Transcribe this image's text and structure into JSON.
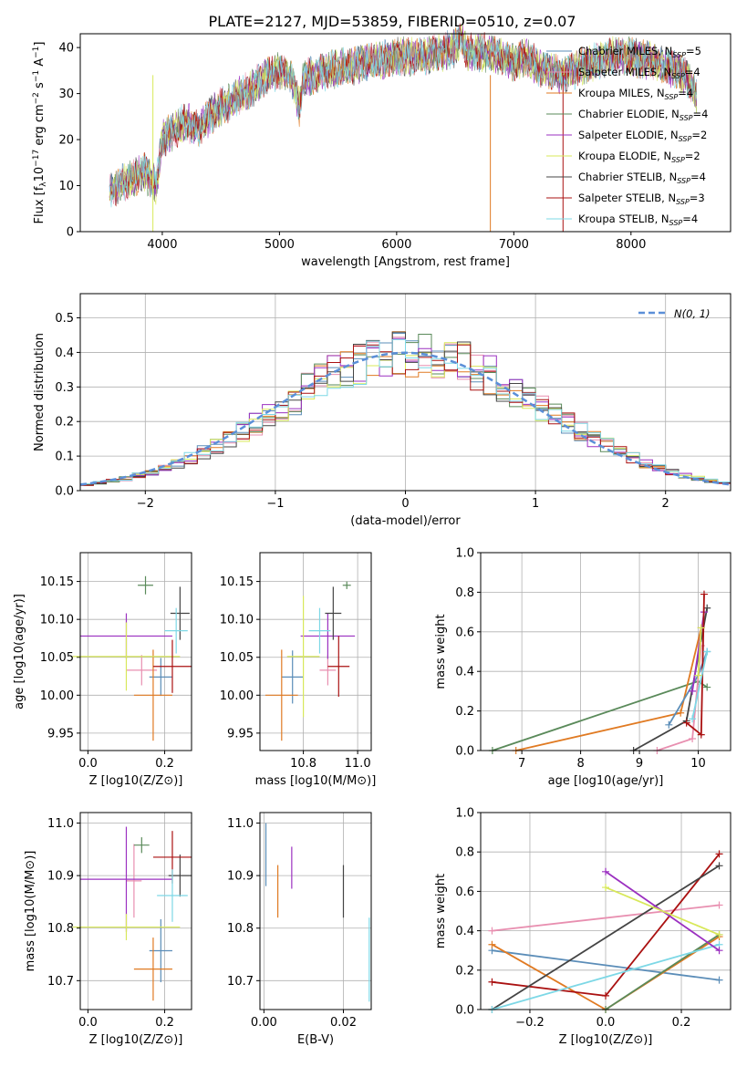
{
  "title": "PLATE=2127, MJD=53859, FIBERID=0510, z=0.07",
  "colors": {
    "chabrier_miles": "#5b8db8",
    "salpeter_miles": "#e88fb0",
    "kroupa_miles": "#e07a22",
    "chabrier_elodie": "#5a8a5a",
    "salpeter_elodie": "#9b30c0",
    "kroupa_elodie": "#d8e85a",
    "chabrier_stelib": "#444444",
    "salpeter_stelib": "#aa1111",
    "kroupa_stelib": "#7dd8e6",
    "gaussian": "#5b8fd8"
  },
  "legend": [
    "Chabrier MILES, N_SSP=5",
    "Salpeter MILES, N_SSP=4",
    "Kroupa MILES, N_SSP=4",
    "Chabrier ELODIE, N_SSP=4",
    "Salpeter ELODIE, N_SSP=2",
    "Kroupa ELODIE, N_SSP=2",
    "Chabrier STELIB, N_SSP=4",
    "Salpeter STELIB, N_SSP=3",
    "Kroupa STELIB, N_SSP=4"
  ],
  "chart_data": [
    {
      "type": "line",
      "name": "spectrum",
      "xlabel": "wavelength [Angstrom, rest frame]",
      "ylabel": "Flux [f_λ 10^-17 erg cm^-2 s^-1 A^-1]",
      "xlim": [
        3300,
        8850
      ],
      "ylim": [
        0,
        43
      ],
      "xticks": [
        4000,
        5000,
        6000,
        7000,
        8000
      ],
      "yticks": [
        0,
        10,
        20,
        30,
        40
      ],
      "x": [
        3550,
        3700,
        3850,
        3950,
        4000,
        4100,
        4200,
        4300,
        4400,
        4500,
        4700,
        4900,
        5000,
        5100,
        5170,
        5200,
        5400,
        5600,
        5800,
        6000,
        6200,
        6400,
        6500,
        6560,
        6600,
        6800,
        7000,
        7100,
        7200,
        7400,
        7600,
        7800,
        8000,
        8200,
        8400,
        8500,
        8560
      ],
      "y": [
        9,
        11,
        13,
        10,
        20,
        22,
        24,
        22,
        25,
        27,
        30,
        34,
        35,
        34,
        27,
        33,
        35,
        36,
        37,
        38,
        38,
        39,
        40,
        42,
        39,
        39,
        37,
        38,
        36,
        34,
        36,
        38,
        38,
        37,
        35,
        33,
        29
      ]
    },
    {
      "type": "area",
      "name": "residual histogram",
      "xlabel": "(data-model)/error",
      "ylabel": "Normed distribution",
      "xlim": [
        -2.5,
        2.5
      ],
      "ylim": [
        0,
        0.57
      ],
      "xticks": [
        -2,
        -1,
        0,
        1,
        2
      ],
      "yticks": [
        0.0,
        0.1,
        0.2,
        0.3,
        0.4,
        0.5
      ],
      "gaussian_label": "N(0, 1)"
    },
    {
      "type": "scatter",
      "name": "age vs Z",
      "xlabel": "Z [log10(Z/Z⊙)]",
      "ylabel": "age  [log10(age/yr)]",
      "xlim": [
        -0.02,
        0.27
      ],
      "ylim": [
        9.927,
        10.188
      ],
      "xticks": [
        0.0,
        0.2
      ],
      "yticks": [
        9.95,
        10.0,
        10.05,
        10.1,
        10.15
      ],
      "points": [
        {
          "x": 0.19,
          "y": 10.024,
          "xerr": 0.03,
          "yerr": 0.025
        },
        {
          "x": 0.14,
          "y": 10.033,
          "xerr": 0.04,
          "yerr": 0.02
        },
        {
          "x": 0.17,
          "y": 10.0,
          "xerr": 0.05,
          "yerr": 0.06
        },
        {
          "x": 0.15,
          "y": 10.145,
          "xerr": 0.02,
          "yerr": 0.012
        },
        {
          "x": 0.1,
          "y": 10.078,
          "xerr": 0.12,
          "yerr": 0.03
        },
        {
          "x": 0.1,
          "y": 10.051,
          "xerr": 0.14,
          "yerr": 0.045
        },
        {
          "x": 0.24,
          "y": 10.108,
          "xerr": 0.025,
          "yerr": 0.035
        },
        {
          "x": 0.22,
          "y": 10.038,
          "xerr": 0.05,
          "yerr": 0.035
        },
        {
          "x": 0.23,
          "y": 10.085,
          "xerr": 0.03,
          "yerr": 0.03
        }
      ]
    },
    {
      "type": "scatter",
      "name": "age vs mass",
      "xlabel": "mass [log10(M/M⊙)]",
      "ylabel": "",
      "xlim": [
        10.64,
        11.05
      ],
      "ylim": [
        9.927,
        10.188
      ],
      "xticks": [
        10.8,
        11.0
      ],
      "yticks": [
        9.95,
        10.0,
        10.05,
        10.1,
        10.15
      ],
      "points": [
        {
          "x": 10.76,
          "y": 10.024,
          "xerr": 0.04,
          "yerr": 0.035
        },
        {
          "x": 10.89,
          "y": 10.033,
          "xerr": 0.03,
          "yerr": 0.02
        },
        {
          "x": 10.72,
          "y": 10.0,
          "xerr": 0.06,
          "yerr": 0.06
        },
        {
          "x": 10.96,
          "y": 10.145,
          "xerr": 0.015,
          "yerr": 0.005
        },
        {
          "x": 10.89,
          "y": 10.078,
          "xerr": 0.1,
          "yerr": 0.03
        },
        {
          "x": 10.8,
          "y": 10.051,
          "xerr": 0.06,
          "yerr": 0.08
        },
        {
          "x": 10.91,
          "y": 10.108,
          "xerr": 0.03,
          "yerr": 0.035
        },
        {
          "x": 10.93,
          "y": 10.038,
          "xerr": 0.04,
          "yerr": 0.04
        },
        {
          "x": 10.86,
          "y": 10.085,
          "xerr": 0.04,
          "yerr": 0.03
        }
      ]
    },
    {
      "type": "line",
      "name": "mass weight vs age",
      "xlabel": "age  [log10(age/yr)]",
      "ylabel": "mass weight",
      "xlim": [
        6.3,
        10.55
      ],
      "ylim": [
        0,
        1
      ],
      "xticks": [
        7,
        8,
        9,
        10
      ],
      "yticks": [
        0.0,
        0.2,
        0.4,
        0.6,
        0.8,
        1.0
      ]
    },
    {
      "type": "scatter",
      "name": "mass vs Z",
      "xlabel": "Z [log10(Z/Z⊙)]",
      "ylabel": "mass [log10(M/M⊙)]",
      "xlim": [
        -0.02,
        0.27
      ],
      "ylim": [
        10.645,
        11.02
      ],
      "xticks": [
        0.0,
        0.2
      ],
      "yticks": [
        10.7,
        10.8,
        10.9,
        11.0
      ],
      "points": [
        {
          "x": 0.19,
          "y": 10.757,
          "xerr": 0.03,
          "yerr": 0.06
        },
        {
          "x": 0.12,
          "y": 10.89,
          "xerr": 0.02,
          "yerr": 0.07
        },
        {
          "x": 0.17,
          "y": 10.722,
          "xerr": 0.05,
          "yerr": 0.06
        },
        {
          "x": 0.14,
          "y": 10.958,
          "xerr": 0.02,
          "yerr": 0.015
        },
        {
          "x": 0.1,
          "y": 10.893,
          "xerr": 0.12,
          "yerr": 0.1
        },
        {
          "x": 0.1,
          "y": 10.802,
          "xerr": 0.14,
          "yerr": 0.025
        },
        {
          "x": 0.24,
          "y": 10.9,
          "xerr": 0.03,
          "yerr": 0.04
        },
        {
          "x": 0.22,
          "y": 10.935,
          "xerr": 0.05,
          "yerr": 0.05
        },
        {
          "x": 0.22,
          "y": 10.862,
          "xerr": 0.04,
          "yerr": 0.05
        }
      ]
    },
    {
      "type": "scatter",
      "name": "E(B-V)",
      "xlabel": "E(B-V)",
      "ylabel": "",
      "xlim": [
        -0.001,
        0.027
      ],
      "ylim": [
        10.645,
        11.02
      ],
      "xticks": [
        0.0,
        0.02
      ],
      "yticks": [
        10.7,
        10.8,
        10.9,
        11.0
      ],
      "points": [
        {
          "x": 0.0005,
          "y": 10.94,
          "xerr": 0,
          "yerr": 0.06
        },
        {
          "x": 0.0035,
          "y": 10.87,
          "xerr": 0,
          "yerr": 0.05
        },
        {
          "x": 0.007,
          "y": 10.915,
          "xerr": 0,
          "yerr": 0.04
        },
        {
          "x": 0.02,
          "y": 10.87,
          "xerr": 0,
          "yerr": 0.05
        },
        {
          "x": 0.0265,
          "y": 10.74,
          "xerr": 0,
          "yerr": 0.08
        }
      ]
    },
    {
      "type": "line",
      "name": "mass weight vs Z",
      "xlabel": "Z [log10(Z/Z⊙)]",
      "ylabel": "mass weight",
      "xlim": [
        -0.33,
        0.33
      ],
      "ylim": [
        0,
        1
      ],
      "xticks": [
        -0.2,
        0.0,
        0.2
      ],
      "yticks": [
        0.0,
        0.2,
        0.4,
        0.6,
        0.8,
        1.0
      ]
    }
  ]
}
